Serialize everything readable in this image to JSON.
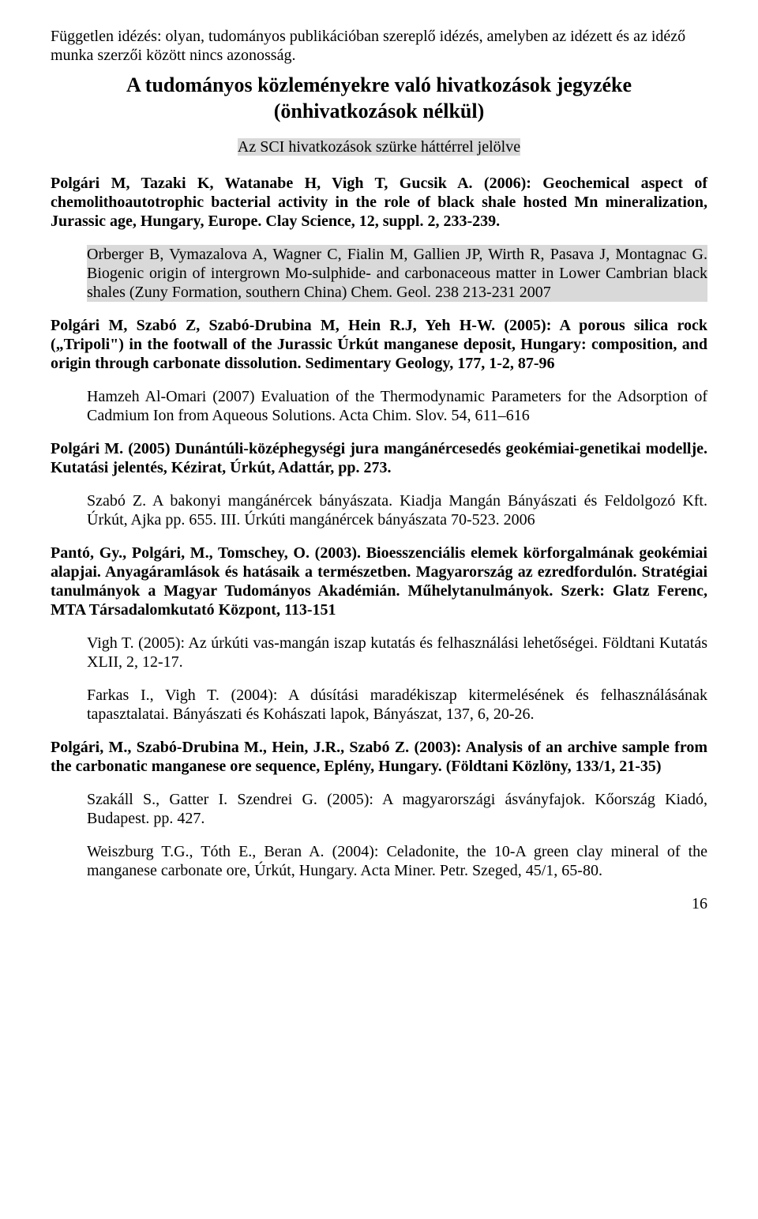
{
  "topnote": "Független idézés: olyan, tudományos publikációban szereplő idézés, amelyben az idézett és az idéző munka szerzői között nincs azonosság.",
  "title": "A tudományos közleményekre való hivatkozások jegyzéke",
  "subtitle": "(önhivatkozások nélkül)",
  "sci_note": "Az SCI hivatkozások szürke háttérrel jelölve",
  "entries": {
    "e1": "Polgári M, Tazaki K, Watanabe H, Vigh T, Gucsik A. (2006): Geochemical aspect of chemolithoautotrophic bacterial activity in the role of black shale hosted Mn mineralization, Jurassic age, Hungary, Europe. Clay Science, 12, suppl. 2, 233-239.",
    "e1_sub1": "Orberger B, Vymazalova A, Wagner C, Fialin M, Gallien JP, Wirth R, Pasava J, Montagnac G. Biogenic origin of intergrown Mo-sulphide- and carbonaceous matter in Lower Cambrian black shales (Zuny Formation, southern China) Chem. Geol. 238 213-231 2007",
    "e2": "Polgári M, Szabó Z, Szabó-Drubina M, Hein R.J, Yeh H-W. (2005): A porous silica rock („Tripoli\") in the footwall of the Jurassic Úrkút manganese deposit, Hungary: composition, and origin through carbonate dissolution. Sedimentary Geology, 177, 1-2, 87-96",
    "e2_sub1": "Hamzeh Al-Omari (2007) Evaluation of the Thermodynamic Parameters for the Adsorption of Cadmium Ion from Aqueous Solutions. Acta Chim. Slov. 54, 611–616",
    "e3": "Polgári M. (2005) Dunántúli-középhegységi jura mangánércesedés geokémiai-genetikai modellje. Kutatási jelentés, Kézirat, Úrkút, Adattár, pp. 273.",
    "e3_sub1": "Szabó Z. A bakonyi mangánércek bányászata. Kiadja Mangán Bányászati és Feldolgozó Kft. Úrkút, Ajka pp. 655. III. Úrkúti mangánércek bányászata 70-523. 2006",
    "e4": "Pantó, Gy., Polgári, M., Tomschey, O. (2003). Bioesszenciális elemek körforgalmának geokémiai alapjai. Anyagáramlások és hatásaik a természetben. Magyarország az ezredfordulón. Stratégiai tanulmányok a Magyar Tudományos Akadémián. Műhelytanulmányok. Szerk: Glatz Ferenc, MTA Társadalomkutató Központ, 113-151",
    "e4_sub1": "Vigh T. (2005): Az úrkúti vas-mangán iszap kutatás és felhasználási lehetőségei. Földtani Kutatás XLII, 2, 12-17.",
    "e4_sub2": "Farkas I., Vigh T. (2004): A dúsítási maradékiszap kitermelésének és felhasználásának tapasztalatai. Bányászati és Kohászati lapok, Bányászat, 137, 6, 20-26.",
    "e5": "Polgári, M., Szabó-Drubina M., Hein, J.R., Szabó Z. (2003): Analysis of an archive sample from the carbonatic manganese ore sequence, Eplény, Hungary. (Földtani Közlöny, 133/1, 21-35)",
    "e5_sub1": "Szakáll S., Gatter I. Szendrei G. (2005): A magyarországi ásványfajok. Kőország Kiadó, Budapest. pp. 427.",
    "e5_sub2": "Weiszburg T.G., Tóth E., Beran A. (2004): Celadonite, the 10-A green clay mineral of the manganese carbonate ore, Úrkút, Hungary. Acta Miner. Petr. Szeged, 45/1, 65-80."
  },
  "styling": {
    "highlight_bg": "#d9d9d9",
    "page_bg": "#ffffff",
    "text_color": "#000000",
    "font_family": "Times New Roman",
    "body_fontsize_pt": 15,
    "title_fontsize_pt": 20
  },
  "page_number": "16"
}
